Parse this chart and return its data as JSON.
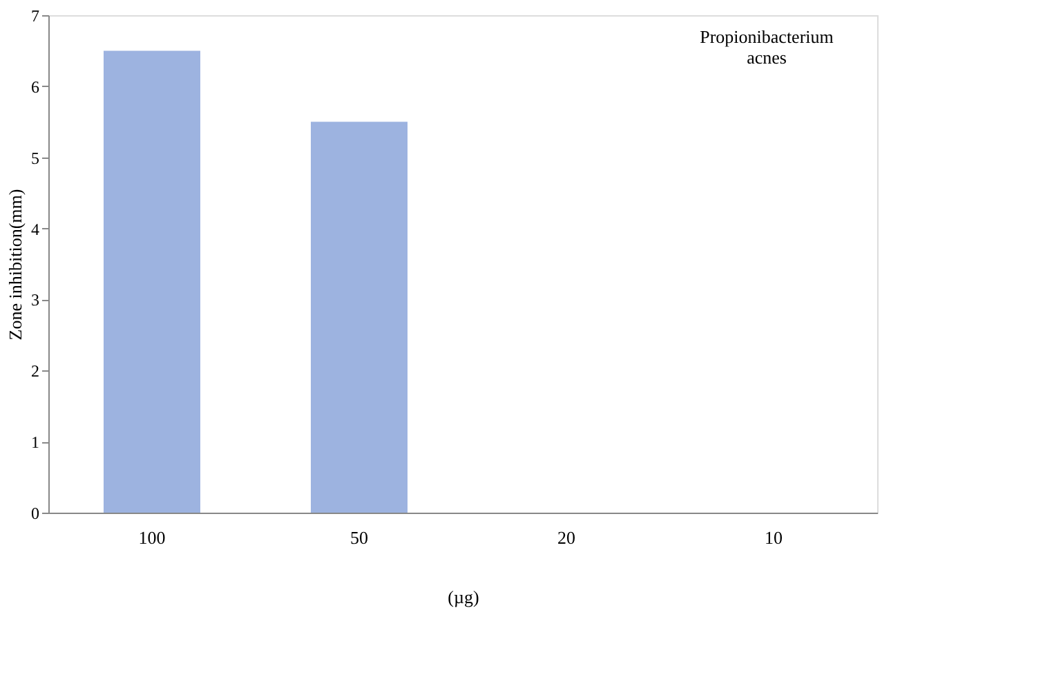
{
  "chart_data": {
    "type": "bar",
    "categories": [
      "100",
      "50",
      "20",
      "10"
    ],
    "values": [
      6.5,
      5.5,
      0,
      0
    ],
    "color": "#9db3e0",
    "ylim": [
      0,
      7
    ],
    "yticks": [
      0,
      1,
      2,
      3,
      4,
      5,
      6,
      7
    ],
    "xlabel": "(µg)",
    "ylabel": "Zone inhibition(mm)",
    "annotations": [
      "Propionibacterium acnes"
    ],
    "grid": false
  }
}
